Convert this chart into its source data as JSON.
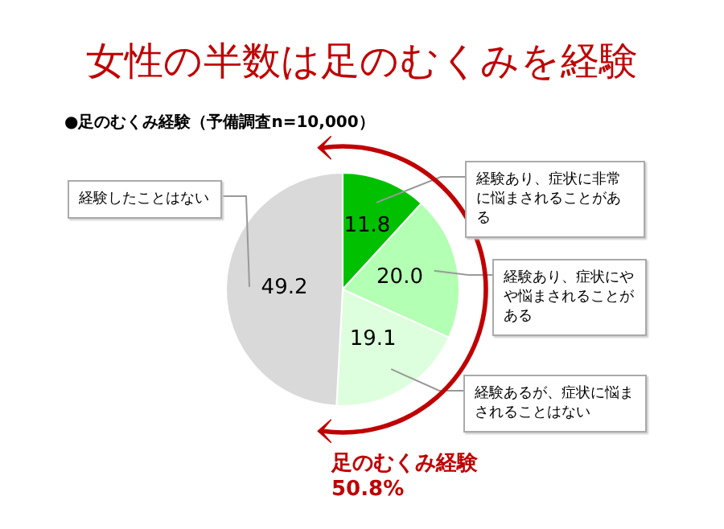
{
  "chart_data": {
    "type": "pie",
    "title": "女性の半数は足のむくみを経験",
    "subtitle": "●足のむくみ経験（予備調査n=10,000）",
    "categories": [
      "経験あり、症状に非常に悩まされることがある",
      "経験あり、症状にやや悩まされることがある",
      "経験あるが、症状に悩まされることはない",
      "経験したことはない"
    ],
    "values": [
      11.8,
      20.0,
      19.1,
      49.2
    ],
    "colors": [
      "#00c000",
      "#b3ffb3",
      "#ddffdd",
      "#d9d9d9"
    ],
    "value_labels": [
      "11.8",
      "20.0",
      "19.1",
      "49.2"
    ],
    "legend": false,
    "annotations": [
      "足のむくみ経験",
      "50.8%"
    ]
  }
}
